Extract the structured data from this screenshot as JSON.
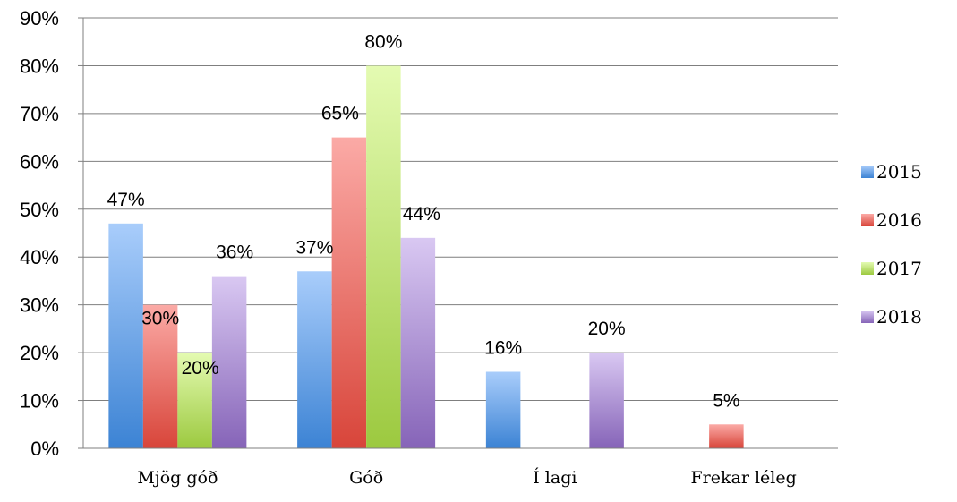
{
  "chart_data": {
    "type": "bar",
    "categories": [
      "Mjög góð",
      "Góð",
      "Í lagi",
      "Frekar léleg"
    ],
    "series": [
      {
        "name": "2015",
        "values": [
          47,
          37,
          16,
          0
        ],
        "labels": [
          "47%",
          "37%",
          "16%",
          ""
        ],
        "color_top": "#a9cdfb",
        "color_bottom": "#3c83d4"
      },
      {
        "name": "2016",
        "values": [
          30,
          65,
          0,
          5
        ],
        "labels": [
          "30%",
          "65%",
          "",
          "5%"
        ],
        "color_top": "#fbaaa6",
        "color_bottom": "#d8453a"
      },
      {
        "name": "2017",
        "values": [
          20,
          80,
          0,
          0
        ],
        "labels": [
          "20%",
          "80%",
          "",
          ""
        ],
        "color_top": "#e4fbb2",
        "color_bottom": "#9cc93f"
      },
      {
        "name": "2018",
        "values": [
          36,
          44,
          20,
          0
        ],
        "labels": [
          "36%",
          "44%",
          "20%",
          ""
        ],
        "color_top": "#d9c8f2",
        "color_bottom": "#8664b8"
      }
    ],
    "y_ticks": [
      "0%",
      "10%",
      "20%",
      "30%",
      "40%",
      "50%",
      "60%",
      "70%",
      "80%",
      "90%"
    ],
    "ylim": [
      0,
      90
    ],
    "y_unit": "%",
    "grid": true,
    "legend_position": "right"
  }
}
